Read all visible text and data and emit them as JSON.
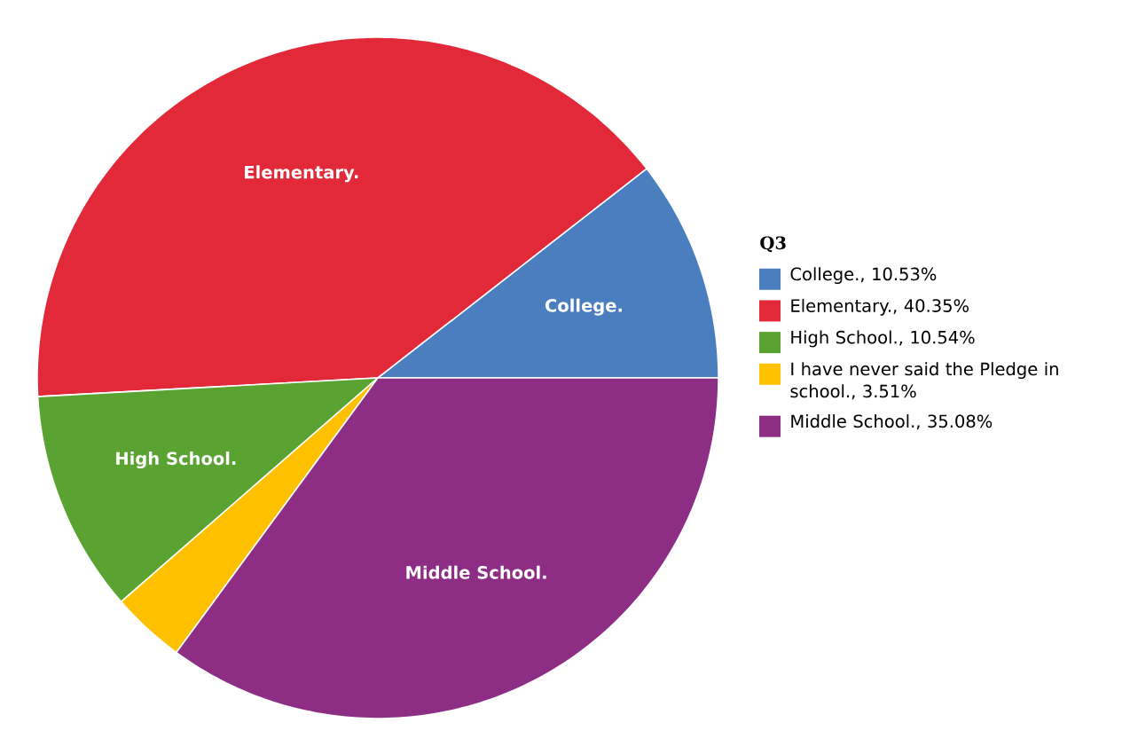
{
  "chart_data": {
    "type": "pie",
    "legend_title": "Q3",
    "legend": "right",
    "categories": [
      "College.",
      "Elementary.",
      "High School.",
      "I have never said the Pledge in school.",
      "Middle School."
    ],
    "values": [
      10.53,
      40.35,
      10.54,
      3.51,
      35.08
    ],
    "colors": [
      "#4a7ebf",
      "#e2293a",
      "#5aa332",
      "#ffc000",
      "#8e2d84"
    ],
    "value_labels": [
      ", 10.53%",
      ", 40.35%",
      ", 10.54%",
      ", 3.51%",
      ", 35.08%"
    ]
  }
}
